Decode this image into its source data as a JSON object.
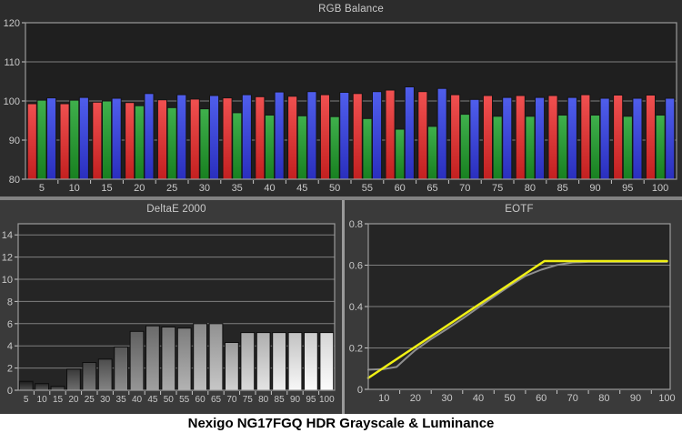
{
  "caption": {
    "text": "Nexigo NG17FGQ HDR Grayscale & Luminance"
  },
  "theme": {
    "top_panel_bg": "#2c2c2c",
    "bottom_panel_bg": "#3a3a3a",
    "plot_bg_top": "#1f1f1f",
    "plot_bg_bottom": "#252525",
    "grid": "#7f7f7f",
    "border": "#9a9a9a",
    "text": "#c9c9c9",
    "bar_outline": "#141414",
    "divider": "#828282",
    "caption_bg": "#ffffff",
    "caption_text": "#000000"
  },
  "chart_data": [
    {
      "id": "rgb_balance",
      "type": "bar",
      "title": "RGB Balance",
      "xlabel": "",
      "ylabel": "",
      "ylim": [
        80,
        120
      ],
      "yticks": [
        80,
        90,
        100,
        110,
        120
      ],
      "grid": true,
      "legend_position": "none",
      "categories": [
        5,
        10,
        15,
        20,
        25,
        30,
        35,
        40,
        45,
        50,
        55,
        60,
        65,
        70,
        75,
        80,
        85,
        90,
        95,
        100
      ],
      "series": [
        {
          "name": "Red",
          "color_top": "#f05050",
          "color_bottom": "#c32020",
          "values": [
            99.3,
            99.3,
            99.7,
            99.6,
            100.3,
            100.5,
            100.8,
            101.1,
            101.2,
            101.6,
            101.9,
            102.8,
            102.4,
            101.6,
            101.4,
            101.4,
            101.4,
            101.6,
            101.5,
            101.5
          ]
        },
        {
          "name": "Green",
          "color_top": "#3fb04c",
          "color_bottom": "#188020",
          "values": [
            100.2,
            100.2,
            100.0,
            98.8,
            98.3,
            98.0,
            97.0,
            96.4,
            96.2,
            96.0,
            95.5,
            92.8,
            93.5,
            96.6,
            96.1,
            96.1,
            96.4,
            96.4,
            96.1,
            96.4
          ]
        },
        {
          "name": "Blue",
          "color_top": "#4f5eec",
          "color_bottom": "#2a2fbe",
          "values": [
            100.8,
            100.9,
            100.7,
            101.9,
            101.6,
            101.4,
            101.6,
            102.3,
            102.4,
            102.2,
            102.4,
            103.6,
            103.2,
            100.4,
            100.9,
            100.9,
            100.9,
            100.7,
            100.7,
            100.7
          ]
        }
      ]
    },
    {
      "id": "deltae_2000",
      "type": "bar",
      "title": "DeltaE 2000",
      "xlabel": "",
      "ylabel": "",
      "ylim": [
        0,
        15
      ],
      "yticks": [
        0,
        2,
        4,
        6,
        8,
        10,
        12,
        14
      ],
      "grid": true,
      "legend_position": "none",
      "bar_style": "grayscale-by-category",
      "categories": [
        5,
        10,
        15,
        20,
        25,
        30,
        35,
        40,
        45,
        50,
        55,
        60,
        65,
        70,
        75,
        80,
        85,
        90,
        95,
        100
      ],
      "values": [
        0.8,
        0.6,
        0.35,
        1.9,
        2.5,
        2.8,
        3.9,
        5.3,
        5.8,
        5.7,
        5.6,
        6.0,
        6.0,
        4.3,
        5.2,
        5.2,
        5.2,
        5.2,
        5.2,
        5.2
      ]
    },
    {
      "id": "eotf",
      "type": "line",
      "title": "EOTF",
      "xlabel": "",
      "ylabel": "",
      "xlim": [
        5,
        100
      ],
      "xticks": [
        10,
        20,
        30,
        40,
        50,
        60,
        70,
        80,
        90,
        100
      ],
      "ylim": [
        0,
        0.8
      ],
      "yticks": [
        0,
        0.2,
        0.4,
        0.6,
        0.8
      ],
      "grid": true,
      "legend_position": "none",
      "series": [
        {
          "name": "gray-curve",
          "color": "#8f8f8f",
          "width": 2,
          "points": [
            [
              5,
              0.095
            ],
            [
              10,
              0.098
            ],
            [
              14,
              0.108
            ],
            [
              17,
              0.15
            ],
            [
              20,
              0.19
            ],
            [
              25,
              0.243
            ],
            [
              30,
              0.292
            ],
            [
              35,
              0.342
            ],
            [
              40,
              0.395
            ],
            [
              45,
              0.448
            ],
            [
              50,
              0.5
            ],
            [
              55,
              0.548
            ],
            [
              60,
              0.578
            ],
            [
              65,
              0.601
            ],
            [
              70,
              0.613
            ],
            [
              75,
              0.616
            ],
            [
              100,
              0.616
            ]
          ]
        },
        {
          "name": "yellow-curve",
          "color": "#f0f014",
          "width": 2.5,
          "points": [
            [
              5,
              0.055
            ],
            [
              61,
              0.62
            ],
            [
              100,
              0.62
            ]
          ]
        }
      ]
    }
  ]
}
